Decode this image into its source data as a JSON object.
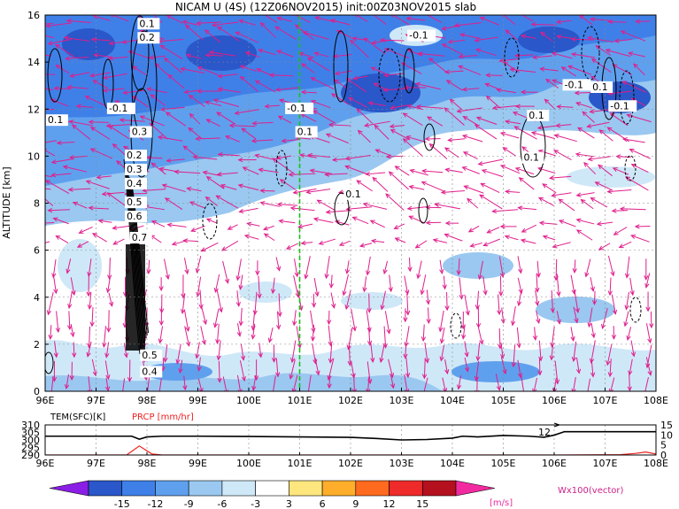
{
  "chart_data": [
    {
      "type": "heatmap",
      "title": "NICAM U (4S) (12Z06NOV2015) init:00Z03NOV2015 slab",
      "ylabel": "ALTITUDE [km]",
      "xlim": [
        96,
        108
      ],
      "ylim": [
        0,
        16
      ],
      "x_ticks": [
        "96E",
        "97E",
        "98E",
        "99E",
        "100E",
        "101E",
        "102E",
        "103E",
        "104E",
        "105E",
        "106E",
        "107E",
        "108E"
      ],
      "y_ticks": [
        "0",
        "2",
        "4",
        "6",
        "8",
        "10",
        "12",
        "14",
        "16"
      ],
      "grid": true,
      "marker_line_x": 101,
      "contour_labels": [
        {
          "text": "0.1",
          "x": 97.85,
          "y": 15.5
        },
        {
          "text": "0.2",
          "x": 97.85,
          "y": 14.9
        },
        {
          "text": "-0.1",
          "x": 97.25,
          "y": 11.9
        },
        {
          "text": "0.1",
          "x": 96.05,
          "y": 11.4
        },
        {
          "text": "0.3",
          "x": 97.7,
          "y": 10.9
        },
        {
          "text": "0.2",
          "x": 97.6,
          "y": 9.9
        },
        {
          "text": "0.3",
          "x": 97.6,
          "y": 9.3
        },
        {
          "text": "0.4",
          "x": 97.6,
          "y": 8.7
        },
        {
          "text": "0.5",
          "x": 97.6,
          "y": 7.9
        },
        {
          "text": "0.6",
          "x": 97.6,
          "y": 7.3
        },
        {
          "text": "0.7",
          "x": 97.7,
          "y": 6.4
        },
        {
          "text": "0.5",
          "x": 97.9,
          "y": 1.4
        },
        {
          "text": "0.4",
          "x": 97.9,
          "y": 0.7
        },
        {
          "text": "-0.1",
          "x": 103.15,
          "y": 15.0
        },
        {
          "text": "-0.1",
          "x": 100.75,
          "y": 11.9
        },
        {
          "text": "0.1",
          "x": 100.95,
          "y": 10.9
        },
        {
          "text": "0.1",
          "x": 101.9,
          "y": 8.25
        },
        {
          "text": "0.1",
          "x": 105.5,
          "y": 11.6
        },
        {
          "text": "0.1",
          "x": 105.4,
          "y": 9.8
        },
        {
          "text": "-0.1",
          "x": 106.2,
          "y": 12.9
        },
        {
          "text": "0.1",
          "x": 106.75,
          "y": 12.8
        },
        {
          "text": "-0.1",
          "x": 107.1,
          "y": 12.0
        }
      ]
    },
    {
      "type": "line",
      "labels": [
        "TEM(SFC)[K]",
        "PRCP [mm/hr]"
      ],
      "left_ticks": [
        "310",
        "305",
        "300",
        "295",
        "290"
      ],
      "right_ticks": [
        "15",
        "10",
        "5",
        "0"
      ],
      "x_ticks": [
        "96E",
        "97E",
        "98E",
        "99E",
        "100E",
        "101E",
        "102E",
        "103E",
        "104E",
        "105E",
        "106E",
        "107E",
        "108E"
      ],
      "xlim": [
        96,
        108
      ],
      "left_ylim": [
        290,
        310
      ],
      "right_ylim": [
        0,
        15
      ],
      "series": [
        {
          "name": "TEM(SFC)[K]",
          "x": [
            96,
            97.5,
            97.7,
            97.85,
            98.0,
            98.3,
            99,
            100,
            101,
            102,
            102.5,
            103,
            103.5,
            104,
            104.2,
            104.5,
            105,
            105.5,
            105.8,
            106.0,
            106.2,
            107,
            108
          ],
          "y": [
            302.5,
            302.5,
            302.5,
            300.5,
            302.0,
            302.5,
            302.5,
            302.3,
            302.0,
            301.7,
            301.0,
            300.0,
            300.3,
            301.2,
            302.5,
            302.0,
            303.0,
            302.5,
            301.8,
            303.2,
            305.5,
            305.5,
            305.5
          ]
        },
        {
          "name": "PRCP [mm/hr]",
          "x": [
            96,
            97.6,
            97.85,
            98.1,
            98.3,
            99,
            100,
            101,
            102,
            103,
            104,
            105,
            106,
            107.3,
            107.6,
            107.8,
            108
          ],
          "y": [
            0,
            0,
            4.5,
            0.5,
            0,
            0,
            0,
            0,
            0,
            0,
            0,
            0,
            0,
            0.2,
            0.8,
            1.5,
            0.5
          ]
        }
      ],
      "annotation": "12"
    }
  ],
  "colorbar": {
    "ticks": [
      "-15",
      "-12",
      "-9",
      "-6",
      "-3",
      "3",
      "6",
      "9",
      "12",
      "15"
    ],
    "colors": [
      "#8a1ee6",
      "#2a57c9",
      "#3f80e8",
      "#5fa0ee",
      "#9ac8f0",
      "#cfe8f8",
      "#ffffff",
      "#fde67e",
      "#ffad2a",
      "#ff6a1f",
      "#ee2a2a",
      "#b4101e",
      "#f22aa0"
    ],
    "unit": "[m/s]",
    "vector_label": "Wx100(vector)"
  }
}
